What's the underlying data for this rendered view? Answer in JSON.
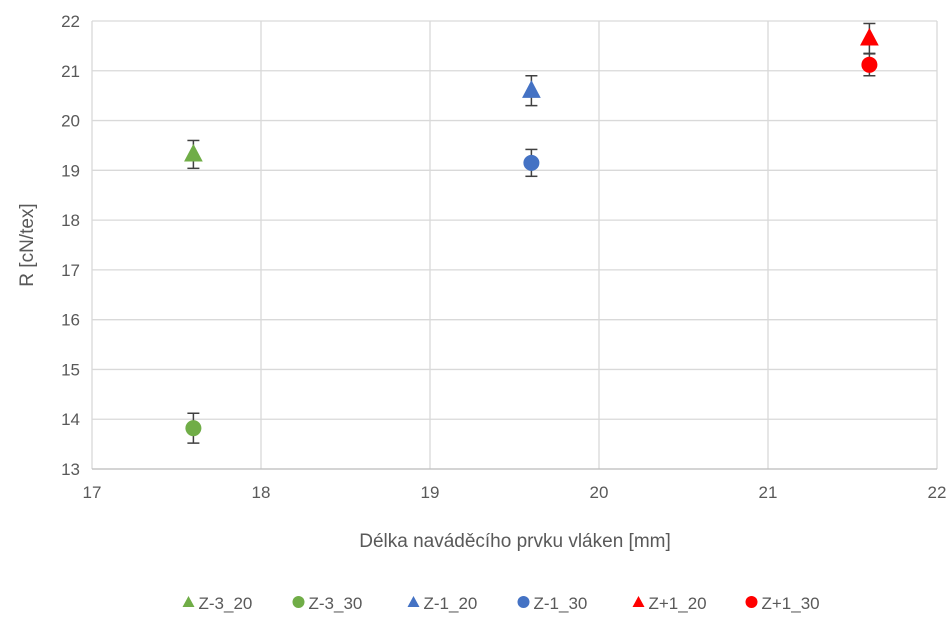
{
  "chart_data": {
    "type": "scatter",
    "title": "",
    "xlabel": "Délka naváděcího prvku vláken [mm]",
    "ylabel": "R [cN/tex]",
    "xlim": [
      17,
      22
    ],
    "ylim": [
      13,
      22
    ],
    "x_ticks": [
      "17",
      "18",
      "19",
      "20",
      "21",
      "22"
    ],
    "y_ticks": [
      "13",
      "14",
      "15",
      "16",
      "17",
      "18",
      "19",
      "20",
      "21",
      "22"
    ],
    "grid": true,
    "legend_position": "bottom",
    "series": [
      {
        "name": "Z-3_20",
        "marker": "triangle",
        "color": "#70AD47",
        "points": [
          {
            "x": 17.6,
            "y": 19.32,
            "err": 0.28
          }
        ]
      },
      {
        "name": "Z-3_30",
        "marker": "circle",
        "color": "#70AD47",
        "points": [
          {
            "x": 17.6,
            "y": 13.82,
            "err": 0.3
          }
        ]
      },
      {
        "name": "Z-1_20",
        "marker": "triangle",
        "color": "#4472C4",
        "points": [
          {
            "x": 19.6,
            "y": 20.6,
            "err": 0.3
          }
        ]
      },
      {
        "name": "Z-1_30",
        "marker": "circle",
        "color": "#4472C4",
        "points": [
          {
            "x": 19.6,
            "y": 19.15,
            "err": 0.27
          }
        ]
      },
      {
        "name": "Z+1_20",
        "marker": "triangle",
        "color": "#FF0000",
        "points": [
          {
            "x": 21.6,
            "y": 21.65,
            "err": 0.3
          }
        ]
      },
      {
        "name": "Z+1_30",
        "marker": "circle",
        "color": "#FF0000",
        "points": [
          {
            "x": 21.6,
            "y": 21.12,
            "err": 0.22
          }
        ]
      }
    ]
  }
}
